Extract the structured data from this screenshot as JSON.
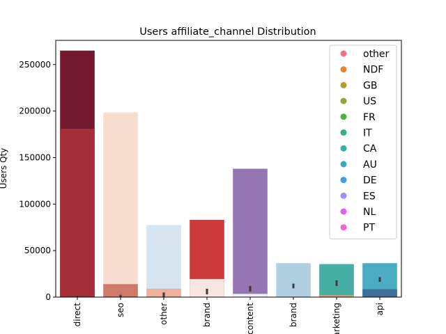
{
  "chart_data": {
    "type": "bar",
    "title": "Users affiliate_channel Distribution",
    "xlabel": "",
    "ylabel": "Users Qty",
    "ylim": [
      0,
      276000
    ],
    "yticks": [
      0,
      50000,
      100000,
      150000,
      200000,
      250000
    ],
    "categories": [
      "direct",
      "seo",
      "other",
      "brand",
      "content",
      "brand",
      "marketing",
      "api"
    ],
    "layers": [
      {
        "values": [
          265000,
          198500,
          77500,
          83000,
          138000,
          36500,
          35500,
          36500
        ],
        "colors": [
          "#73182e",
          "#f7dcd0",
          "#d5e4ef",
          "#cc3a3a",
          "#9575b3",
          "#b0cfe1",
          "#47aea4",
          "#4bacc3"
        ]
      },
      {
        "values": [
          181000,
          14000,
          9000,
          19500,
          3500,
          0,
          2000,
          8500
        ],
        "colors": [
          "#a52d3a",
          "#cf7a6b",
          "#eeb09a",
          "#f7e6df",
          "#eeeef7",
          "#ffffff",
          "#d7a176",
          "#3f6f9d"
        ]
      }
    ],
    "error_bars": [
      {
        "center": 300,
        "low": 0,
        "high": 1500
      },
      {
        "center": 1000,
        "low": 0,
        "high": 2500
      },
      {
        "center": 2500,
        "low": 0,
        "high": 5000
      },
      {
        "center": 6000,
        "low": 3000,
        "high": 9000
      },
      {
        "center": 9000,
        "low": 6000,
        "high": 12000
      },
      {
        "center": 12000,
        "low": 9500,
        "high": 14500
      },
      {
        "center": 15000,
        "low": 12000,
        "high": 18000
      },
      {
        "center": 19000,
        "low": 16500,
        "high": 21500
      }
    ],
    "legend": {
      "placement": "top-right",
      "entries": [
        {
          "label": "other",
          "color": "#f46d88"
        },
        {
          "label": "NDF",
          "color": "#ea8433"
        },
        {
          "label": "GB",
          "color": "#b79b33"
        },
        {
          "label": "US",
          "color": "#96a434"
        },
        {
          "label": "FR",
          "color": "#4eb33a"
        },
        {
          "label": "IT",
          "color": "#35ae7e"
        },
        {
          "label": "CA",
          "color": "#37ada4"
        },
        {
          "label": "AU",
          "color": "#39a9bc"
        },
        {
          "label": "DE",
          "color": "#3f9ee5"
        },
        {
          "label": "ES",
          "color": "#a38cf4"
        },
        {
          "label": "NL",
          "color": "#e060f0"
        },
        {
          "label": "PT",
          "color": "#f565c5"
        }
      ]
    }
  }
}
